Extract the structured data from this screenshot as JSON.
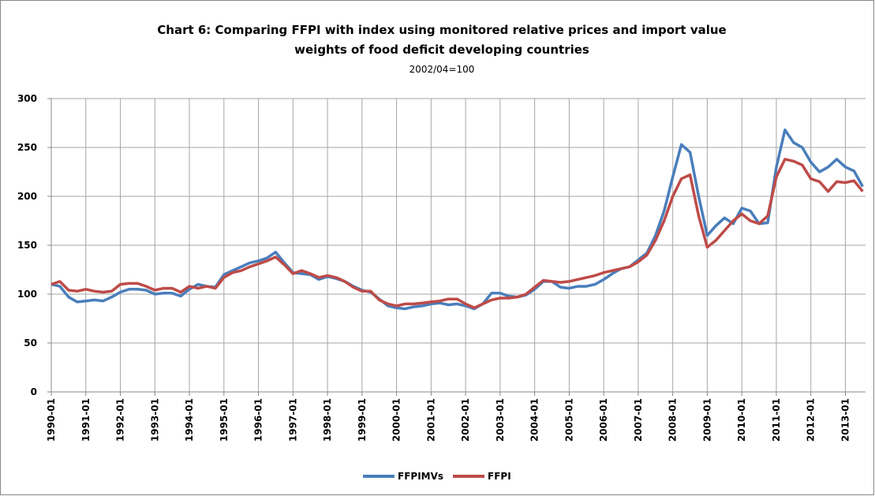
{
  "chart_data": {
    "type": "line",
    "title": [
      "Chart 6: Comparing FFPI with index using monitored relative prices and import value",
      "weights of  food deficit developing countries"
    ],
    "subtitle": "2002/04=100",
    "x": [
      "1990-01",
      "1990-04",
      "1990-07",
      "1990-10",
      "1991-01",
      "1991-04",
      "1991-07",
      "1991-10",
      "1992-01",
      "1992-04",
      "1992-07",
      "1992-10",
      "1993-01",
      "1993-04",
      "1993-07",
      "1993-10",
      "1994-01",
      "1994-04",
      "1994-07",
      "1994-10",
      "1995-01",
      "1995-04",
      "1995-07",
      "1995-10",
      "1996-01",
      "1996-04",
      "1996-07",
      "1996-10",
      "1997-01",
      "1997-04",
      "1997-07",
      "1997-10",
      "1998-01",
      "1998-04",
      "1998-07",
      "1998-10",
      "1999-01",
      "1999-04",
      "1999-07",
      "1999-10",
      "2000-01",
      "2000-04",
      "2000-07",
      "2000-10",
      "2001-01",
      "2001-04",
      "2001-07",
      "2001-10",
      "2002-01",
      "2002-04",
      "2002-07",
      "2002-10",
      "2003-01",
      "2003-04",
      "2003-07",
      "2003-10",
      "2004-01",
      "2004-04",
      "2004-07",
      "2004-10",
      "2005-01",
      "2005-04",
      "2005-07",
      "2005-10",
      "2006-01",
      "2006-04",
      "2006-07",
      "2006-10",
      "2007-01",
      "2007-04",
      "2007-07",
      "2007-10",
      "2008-01",
      "2008-04",
      "2008-07",
      "2008-10",
      "2009-01",
      "2009-04",
      "2009-07",
      "2009-10",
      "2010-01",
      "2010-04",
      "2010-07",
      "2010-10",
      "2011-01",
      "2011-04",
      "2011-07",
      "2011-10",
      "2012-01",
      "2012-04",
      "2012-07",
      "2012-10",
      "2013-01",
      "2013-04",
      "2013-07"
    ],
    "series": [
      {
        "name": "FFPIMVs",
        "color": "#4a7ebb",
        "values": [
          110,
          108,
          97,
          92,
          93,
          94,
          93,
          97,
          102,
          105,
          105,
          104,
          100,
          101,
          101,
          98,
          105,
          110,
          108,
          107,
          120,
          124,
          128,
          132,
          134,
          137,
          143,
          132,
          122,
          121,
          120,
          115,
          118,
          116,
          113,
          108,
          104,
          102,
          95,
          88,
          86,
          85,
          87,
          88,
          90,
          91,
          89,
          90,
          88,
          85,
          90,
          101,
          101,
          98,
          97,
          99,
          105,
          113,
          113,
          107,
          106,
          108,
          108,
          110,
          115,
          121,
          126,
          128,
          135,
          142,
          160,
          185,
          220,
          253,
          245,
          200,
          160,
          170,
          178,
          172,
          188,
          185,
          172,
          173,
          230,
          268,
          255,
          250,
          235,
          225,
          230,
          238,
          230,
          226,
          210
        ]
      },
      {
        "name": "FFPI",
        "color": "#be4b48",
        "values": [
          110,
          113,
          104,
          103,
          105,
          103,
          102,
          103,
          110,
          111,
          111,
          108,
          104,
          106,
          106,
          102,
          108,
          106,
          108,
          106,
          117,
          122,
          124,
          128,
          131,
          134,
          138,
          130,
          121,
          124,
          121,
          117,
          119,
          117,
          113,
          107,
          103,
          103,
          94,
          90,
          88,
          90,
          90,
          91,
          92,
          93,
          95,
          95,
          90,
          86,
          90,
          94,
          96,
          96,
          97,
          100,
          107,
          114,
          113,
          112,
          113,
          115,
          117,
          119,
          122,
          124,
          126,
          128,
          133,
          140,
          155,
          175,
          200,
          218,
          222,
          180,
          148,
          155,
          165,
          175,
          182,
          175,
          172,
          180,
          220,
          238,
          236,
          232,
          218,
          215,
          205,
          215,
          214,
          216,
          205
        ]
      }
    ],
    "xlim": [
      "1990-01",
      "2013-08"
    ],
    "xticks": [
      "1990-01",
      "1991-01",
      "1992-01",
      "1993-01",
      "1994-01",
      "1995-01",
      "1996-01",
      "1997-01",
      "1998-01",
      "1999-01",
      "2000-01",
      "2001-01",
      "2002-01",
      "2003-01",
      "2004-01",
      "2005-01",
      "2006-01",
      "2007-01",
      "2008-01",
      "2009-01",
      "2010-01",
      "2011-01",
      "2012-01",
      "2013-01"
    ],
    "ylim": [
      0,
      300
    ],
    "yticks": [
      0,
      50,
      100,
      150,
      200,
      250,
      300
    ],
    "grid": true,
    "legend": "bottom"
  }
}
